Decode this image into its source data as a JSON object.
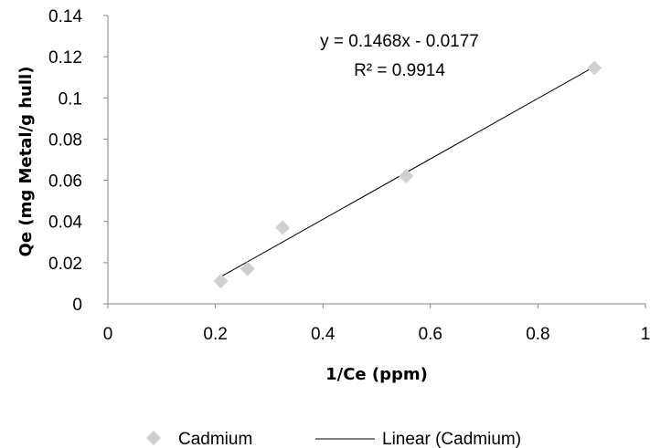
{
  "chart_data": {
    "type": "scatter",
    "xlabel": "1/Ce (ppm)",
    "ylabel": "Qe (mg Metal/g  hull)",
    "xlim": [
      0,
      1
    ],
    "ylim": [
      0,
      0.14
    ],
    "x_ticks": [
      "0",
      "0.2",
      "0.4",
      "0.6",
      "0.8",
      "1"
    ],
    "y_ticks": [
      "0",
      "0.02",
      "0.04",
      "0.06",
      "0.08",
      "0.1",
      "0.12",
      "0.14"
    ],
    "grid": false,
    "legend_position": "bottom",
    "series": [
      {
        "name": "Cadmium",
        "marker": "diamond",
        "color": "#d0d0d0",
        "x": [
          0.21,
          0.26,
          0.325,
          0.555,
          0.905
        ],
        "y": [
          0.011,
          0.017,
          0.037,
          0.062,
          0.1145
        ]
      }
    ],
    "trendline": {
      "name": "Linear (Cadmium)",
      "color": "#000000",
      "slope": 0.1468,
      "intercept": -0.0177,
      "x_range": [
        0.21,
        0.905
      ],
      "equation": "y = 0.1468x - 0.0177",
      "r_squared": "R² = 0.9914"
    }
  }
}
